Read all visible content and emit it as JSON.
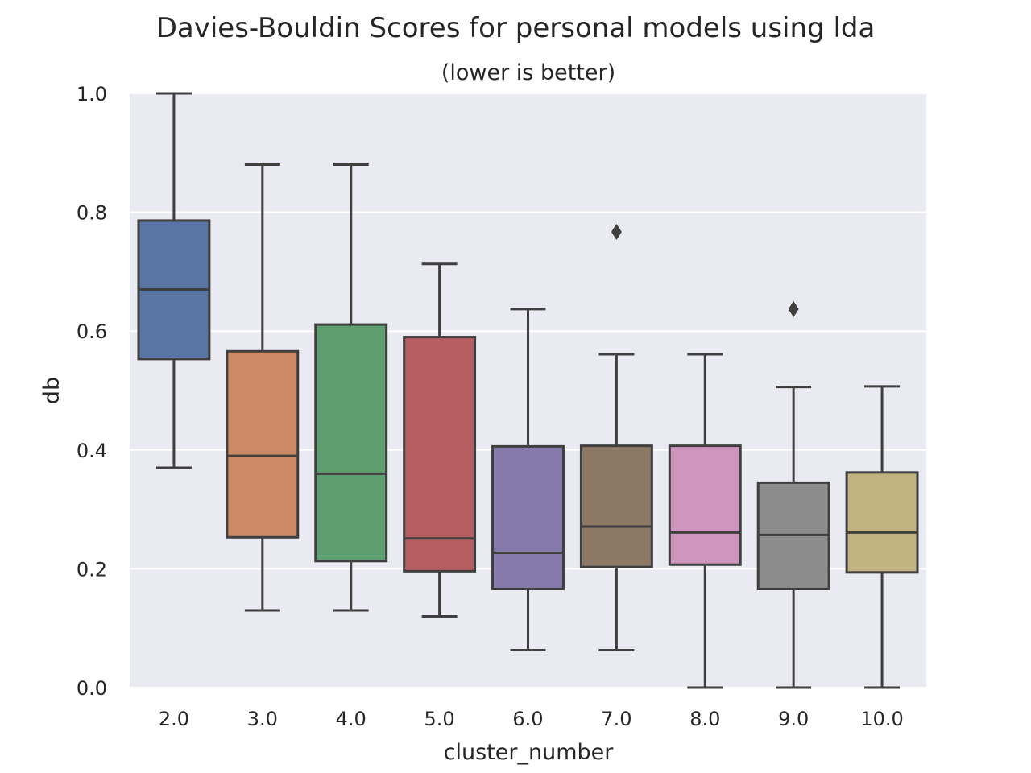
{
  "chart_data": {
    "type": "box",
    "title": "Davies-Bouldin Scores for personal models using lda",
    "subtitle": "(lower is better)",
    "xlabel": "cluster_number",
    "ylabel": "db",
    "ylim": [
      0.0,
      1.0
    ],
    "yticks": [
      "0.0",
      "0.2",
      "0.4",
      "0.6",
      "0.8",
      "1.0"
    ],
    "grid": "horizontal",
    "background": "#eaeaf2",
    "categories": [
      "2.0",
      "3.0",
      "4.0",
      "5.0",
      "6.0",
      "7.0",
      "8.0",
      "9.0",
      "10.0"
    ],
    "boxes": [
      {
        "category": "2.0",
        "whisker_low": 0.37,
        "q1": 0.553,
        "median": 0.67,
        "q3": 0.786,
        "whisker_high": 1.0,
        "outliers": [],
        "color": "#5875a4"
      },
      {
        "category": "3.0",
        "whisker_low": 0.13,
        "q1": 0.253,
        "median": 0.39,
        "q3": 0.566,
        "whisker_high": 0.88,
        "outliers": [],
        "color": "#cc8963"
      },
      {
        "category": "4.0",
        "whisker_low": 0.13,
        "q1": 0.213,
        "median": 0.36,
        "q3": 0.611,
        "whisker_high": 0.88,
        "outliers": [],
        "color": "#5f9e6e"
      },
      {
        "category": "5.0",
        "whisker_low": 0.12,
        "q1": 0.196,
        "median": 0.251,
        "q3": 0.59,
        "whisker_high": 0.713,
        "outliers": [],
        "color": "#b55d60"
      },
      {
        "category": "6.0",
        "whisker_low": 0.063,
        "q1": 0.166,
        "median": 0.227,
        "q3": 0.406,
        "whisker_high": 0.637,
        "outliers": [],
        "color": "#857aab"
      },
      {
        "category": "7.0",
        "whisker_low": 0.063,
        "q1": 0.203,
        "median": 0.271,
        "q3": 0.407,
        "whisker_high": 0.561,
        "outliers": [
          0.767
        ],
        "color": "#8d7866"
      },
      {
        "category": "8.0",
        "whisker_low": 0.0,
        "q1": 0.207,
        "median": 0.261,
        "q3": 0.407,
        "whisker_high": 0.561,
        "outliers": [],
        "color": "#d095bf"
      },
      {
        "category": "9.0",
        "whisker_low": 0.0,
        "q1": 0.166,
        "median": 0.257,
        "q3": 0.345,
        "whisker_high": 0.506,
        "outliers": [
          0.637
        ],
        "color": "#8c8c8c"
      },
      {
        "category": "10.0",
        "whisker_low": 0.0,
        "q1": 0.194,
        "median": 0.261,
        "q3": 0.362,
        "whisker_high": 0.507,
        "outliers": [],
        "color": "#c1b37f"
      }
    ]
  }
}
